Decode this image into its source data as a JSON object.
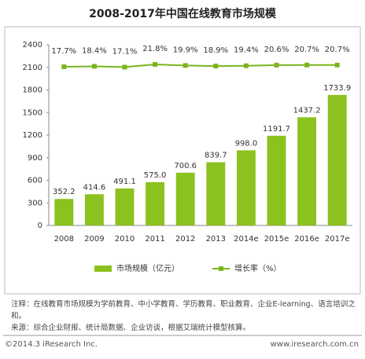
{
  "chart_data": {
    "type": "bar-line",
    "title": "2008-2017年中国在线教育市场规模",
    "categories": [
      "2008",
      "2009",
      "2010",
      "2011",
      "2012",
      "2013",
      "2014e",
      "2015e",
      "2016e",
      "2017e"
    ],
    "series": [
      {
        "name": "市场规模（亿元）",
        "type": "bar",
        "color": "#8cc21f",
        "values": [
          352.2,
          414.6,
          491.1,
          575.0,
          700.6,
          839.7,
          998.0,
          1191.7,
          1437.2,
          1733.9
        ],
        "value_labels": [
          "352.2",
          "414.6",
          "491.1",
          "575.0",
          "700.6",
          "839.7",
          "998.0",
          "1191.7",
          "1437.2",
          "1733.9"
        ]
      },
      {
        "name": "增长率（%）",
        "type": "line",
        "axis": "y2",
        "color": "#7ab51d",
        "values": [
          17.7,
          18.4,
          17.1,
          21.8,
          19.9,
          18.9,
          19.4,
          20.6,
          20.7,
          20.7
        ],
        "value_labels": [
          "17.7%",
          "18.4%",
          "17.1%",
          "21.8%",
          "19.9%",
          "18.9%",
          "19.4%",
          "20.6%",
          "20.7%",
          "20.7%"
        ]
      }
    ],
    "ylim": [
      0,
      2400
    ],
    "yticks": [
      0,
      300,
      600,
      900,
      1200,
      1500,
      1800,
      2100,
      2400
    ],
    "y2lim": [
      -259,
      56
    ],
    "grid": false,
    "legend": "bottom",
    "notes": [
      "注释：在线教育市场规模为学前教育、中小学教育、学历教育、职业教育、企业E-learning、语言培训之和。",
      "来源：综合企业财报、统计局数据、企业访谈，根据艾瑞统计模型核算。"
    ],
    "footer_left": "©2014.3 iResearch Inc.",
    "footer_right": "www.iresearch.com.cn"
  }
}
